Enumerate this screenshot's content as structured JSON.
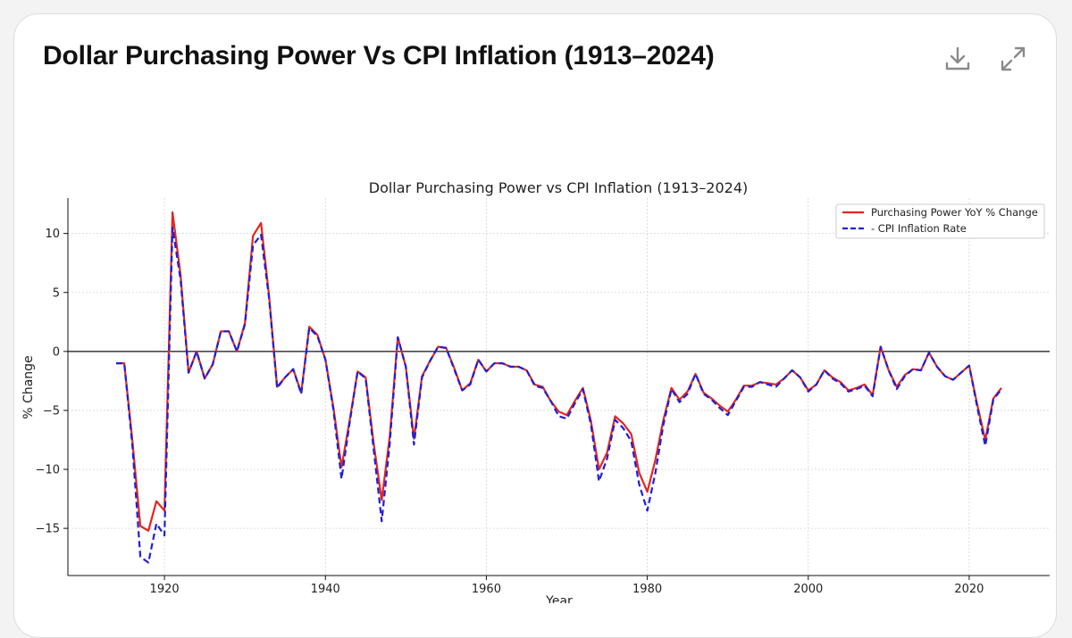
{
  "card": {
    "title": "Dollar Purchasing Power Vs CPI Inflation (1913–2024)",
    "download_icon": "download-icon",
    "expand_icon": "expand-icon"
  },
  "chart_data": {
    "type": "line",
    "title": "Dollar Purchasing Power vs CPI Inflation (1913–2024)",
    "xlabel": "Year",
    "ylabel": "% Change",
    "xlim": [
      1908,
      2030
    ],
    "ylim": [
      -19,
      13
    ],
    "xticks": [
      1920,
      1940,
      1960,
      1980,
      2000,
      2020
    ],
    "yticks": [
      10,
      5,
      0,
      -5,
      -10,
      -15
    ],
    "grid": true,
    "zero_line": true,
    "legend_position": "top-right",
    "series": [
      {
        "name": "Purchasing Power YoY % Change",
        "color": "#e3261f",
        "style": "solid",
        "x": [
          1914,
          1915,
          1916,
          1917,
          1918,
          1919,
          1920,
          1921,
          1922,
          1923,
          1924,
          1925,
          1926,
          1927,
          1928,
          1929,
          1930,
          1931,
          1932,
          1933,
          1934,
          1935,
          1936,
          1937,
          1938,
          1939,
          1940,
          1941,
          1942,
          1943,
          1944,
          1945,
          1946,
          1947,
          1948,
          1949,
          1950,
          1951,
          1952,
          1953,
          1954,
          1955,
          1956,
          1957,
          1958,
          1959,
          1960,
          1961,
          1962,
          1963,
          1964,
          1965,
          1966,
          1967,
          1968,
          1969,
          1970,
          1971,
          1972,
          1973,
          1974,
          1975,
          1976,
          1977,
          1978,
          1979,
          1980,
          1981,
          1982,
          1983,
          1984,
          1985,
          1986,
          1987,
          1988,
          1989,
          1990,
          1991,
          1992,
          1993,
          1994,
          1995,
          1996,
          1997,
          1998,
          1999,
          2000,
          2001,
          2002,
          2003,
          2004,
          2005,
          2006,
          2007,
          2008,
          2009,
          2010,
          2011,
          2012,
          2013,
          2014,
          2015,
          2016,
          2017,
          2018,
          2019,
          2020,
          2021,
          2022,
          2023,
          2024
        ],
        "values": [
          -1.0,
          -1.0,
          -7.5,
          -14.8,
          -15.2,
          -12.7,
          -13.5,
          11.8,
          6.5,
          -1.8,
          0.0,
          -2.3,
          -1.1,
          1.7,
          1.7,
          0.0,
          2.4,
          9.8,
          10.9,
          4.7,
          -3.0,
          -2.2,
          -1.5,
          -3.5,
          2.1,
          1.4,
          -0.7,
          -4.8,
          -9.8,
          -5.9,
          -1.7,
          -2.2,
          -7.8,
          -12.6,
          -7.2,
          1.2,
          -1.3,
          -7.4,
          -2.1,
          -0.8,
          0.4,
          0.3,
          -1.4,
          -3.3,
          -2.7,
          -0.7,
          -1.7,
          -1.0,
          -1.0,
          -1.3,
          -1.3,
          -1.6,
          -2.8,
          -3.0,
          -4.2,
          -5.1,
          -5.4,
          -4.2,
          -3.1,
          -5.9,
          -10.0,
          -8.6,
          -5.5,
          -6.1,
          -7.0,
          -10.3,
          -11.9,
          -9.2,
          -5.8,
          -3.1,
          -4.1,
          -3.4,
          -1.9,
          -3.5,
          -4.0,
          -4.6,
          -5.1,
          -4.1,
          -2.9,
          -2.9,
          -2.6,
          -2.7,
          -2.8,
          -2.3,
          -1.6,
          -2.2,
          -3.3,
          -2.8,
          -1.6,
          -2.2,
          -2.6,
          -3.3,
          -3.1,
          -2.8,
          -3.7,
          0.4,
          -1.6,
          -3.0,
          -2.0,
          -1.5,
          -1.6,
          -0.1,
          -1.3,
          -2.1,
          -2.4,
          -1.8,
          -1.2,
          -4.5,
          -7.5,
          -4.0,
          -3.1
        ]
      },
      {
        "name": "- CPI Inflation Rate",
        "color": "#1f1fd6",
        "style": "dashed",
        "x": [
          1914,
          1915,
          1916,
          1917,
          1918,
          1919,
          1920,
          1921,
          1922,
          1923,
          1924,
          1925,
          1926,
          1927,
          1928,
          1929,
          1930,
          1931,
          1932,
          1933,
          1934,
          1935,
          1936,
          1937,
          1938,
          1939,
          1940,
          1941,
          1942,
          1943,
          1944,
          1945,
          1946,
          1947,
          1948,
          1949,
          1950,
          1951,
          1952,
          1953,
          1954,
          1955,
          1956,
          1957,
          1958,
          1959,
          1960,
          1961,
          1962,
          1963,
          1964,
          1965,
          1966,
          1967,
          1968,
          1969,
          1970,
          1971,
          1972,
          1973,
          1974,
          1975,
          1976,
          1977,
          1978,
          1979,
          1980,
          1981,
          1982,
          1983,
          1984,
          1985,
          1986,
          1987,
          1988,
          1989,
          1990,
          1991,
          1992,
          1993,
          1994,
          1995,
          1996,
          1997,
          1998,
          1999,
          2000,
          2001,
          2002,
          2003,
          2004,
          2005,
          2006,
          2007,
          2008,
          2009,
          2010,
          2011,
          2012,
          2013,
          2014,
          2015,
          2016,
          2017,
          2018,
          2019,
          2020,
          2021,
          2022,
          2023,
          2024
        ],
        "values": [
          -1.0,
          -1.0,
          -7.9,
          -17.4,
          -17.9,
          -14.6,
          -15.6,
          10.5,
          6.1,
          -1.8,
          0.0,
          -2.3,
          -1.1,
          1.7,
          1.7,
          0.0,
          2.3,
          9.0,
          9.9,
          4.5,
          -3.1,
          -2.2,
          -1.5,
          -3.6,
          2.0,
          1.3,
          -0.7,
          -5.0,
          -10.8,
          -6.1,
          -1.7,
          -2.3,
          -8.3,
          -14.4,
          -7.8,
          1.2,
          -1.3,
          -7.9,
          -2.2,
          -0.8,
          0.4,
          0.3,
          -1.5,
          -3.3,
          -2.8,
          -0.7,
          -1.7,
          -1.0,
          -1.0,
          -1.3,
          -1.3,
          -1.6,
          -2.9,
          -3.1,
          -4.2,
          -5.5,
          -5.7,
          -4.4,
          -3.2,
          -6.2,
          -11.0,
          -9.1,
          -5.8,
          -6.5,
          -7.6,
          -11.3,
          -13.5,
          -10.3,
          -6.2,
          -3.2,
          -4.3,
          -3.6,
          -1.9,
          -3.6,
          -4.1,
          -4.8,
          -5.4,
          -4.2,
          -3.0,
          -3.0,
          -2.6,
          -2.8,
          -3.0,
          -2.3,
          -1.6,
          -2.2,
          -3.4,
          -2.8,
          -1.6,
          -2.3,
          -2.7,
          -3.4,
          -3.2,
          -2.9,
          -3.8,
          0.4,
          -1.6,
          -3.2,
          -2.1,
          -1.5,
          -1.6,
          -0.1,
          -1.3,
          -2.1,
          -2.4,
          -1.8,
          -1.2,
          -4.7,
          -8.0,
          -4.1,
          -3.2
        ]
      }
    ]
  }
}
